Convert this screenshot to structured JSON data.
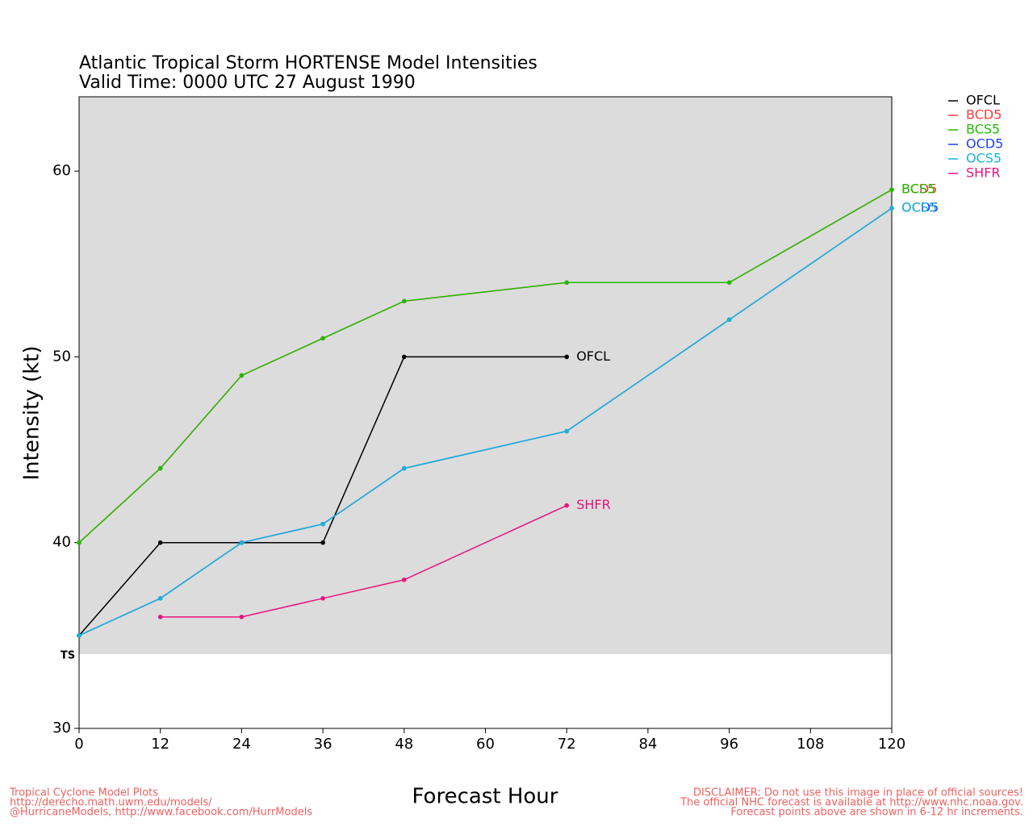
{
  "chart_data": {
    "type": "line",
    "title": "Atlantic Tropical Storm HORTENSE Model Intensities",
    "subtitle": "Valid Time: 0000 UTC 27 August 1990",
    "x_label": "Forecast Hour",
    "y_label": "Intensity (kt)",
    "xlim": [
      0,
      120
    ],
    "xticks": [
      0,
      12,
      24,
      36,
      48,
      60,
      72,
      84,
      96,
      108,
      120
    ],
    "ylim": [
      30,
      64
    ],
    "yticks": [
      30,
      40,
      50,
      60
    ],
    "threshold": {
      "label": "TS",
      "value": 34,
      "color": "#dcdcdc"
    },
    "series": [
      {
        "name": "OFCL",
        "color": "#000000",
        "x": [
          0,
          12,
          24,
          36,
          48,
          72
        ],
        "values": [
          35,
          40,
          40,
          40,
          50,
          50
        ]
      },
      {
        "name": "BCD5",
        "color": "#ff3b3b",
        "x": [
          0,
          12,
          24,
          36,
          48,
          72,
          96,
          120
        ],
        "values": [
          40,
          44,
          49,
          51,
          53,
          54,
          54,
          59
        ]
      },
      {
        "name": "BCS5",
        "color": "#22bb00",
        "x": [
          0,
          12,
          24,
          36,
          48,
          72,
          96,
          120
        ],
        "values": [
          40,
          44,
          49,
          51,
          53,
          54,
          54,
          59
        ]
      },
      {
        "name": "OCD5",
        "color": "#1c3cff",
        "x": [
          0,
          12,
          24,
          36,
          48,
          72,
          96,
          120
        ],
        "values": [
          35,
          37,
          40,
          41,
          44,
          46,
          52,
          58
        ]
      },
      {
        "name": "OCS5",
        "color": "#1cb2d6",
        "x": [
          0,
          12,
          24,
          36,
          48,
          72,
          96,
          120
        ],
        "values": [
          35,
          37,
          40,
          41,
          44,
          46,
          52,
          58
        ]
      },
      {
        "name": "SHFR",
        "color": "#e8137f",
        "x": [
          12,
          24,
          36,
          48,
          72
        ],
        "values": [
          36,
          36,
          37,
          38,
          42
        ]
      }
    ],
    "footer_left": [
      "Tropical Cyclone Model Plots",
      "http://derecho.math.uwm.edu/models/",
      "@HurricaneModels, http://www.facebook.com/HurrModels"
    ],
    "footer_right": [
      "DISCLAIMER: Do not use this image in place of official sources!",
      "The official NHC forecast is available at http://www.nhc.noaa.gov.",
      "Forecast points above are shown in 6-12 hr increments."
    ]
  }
}
